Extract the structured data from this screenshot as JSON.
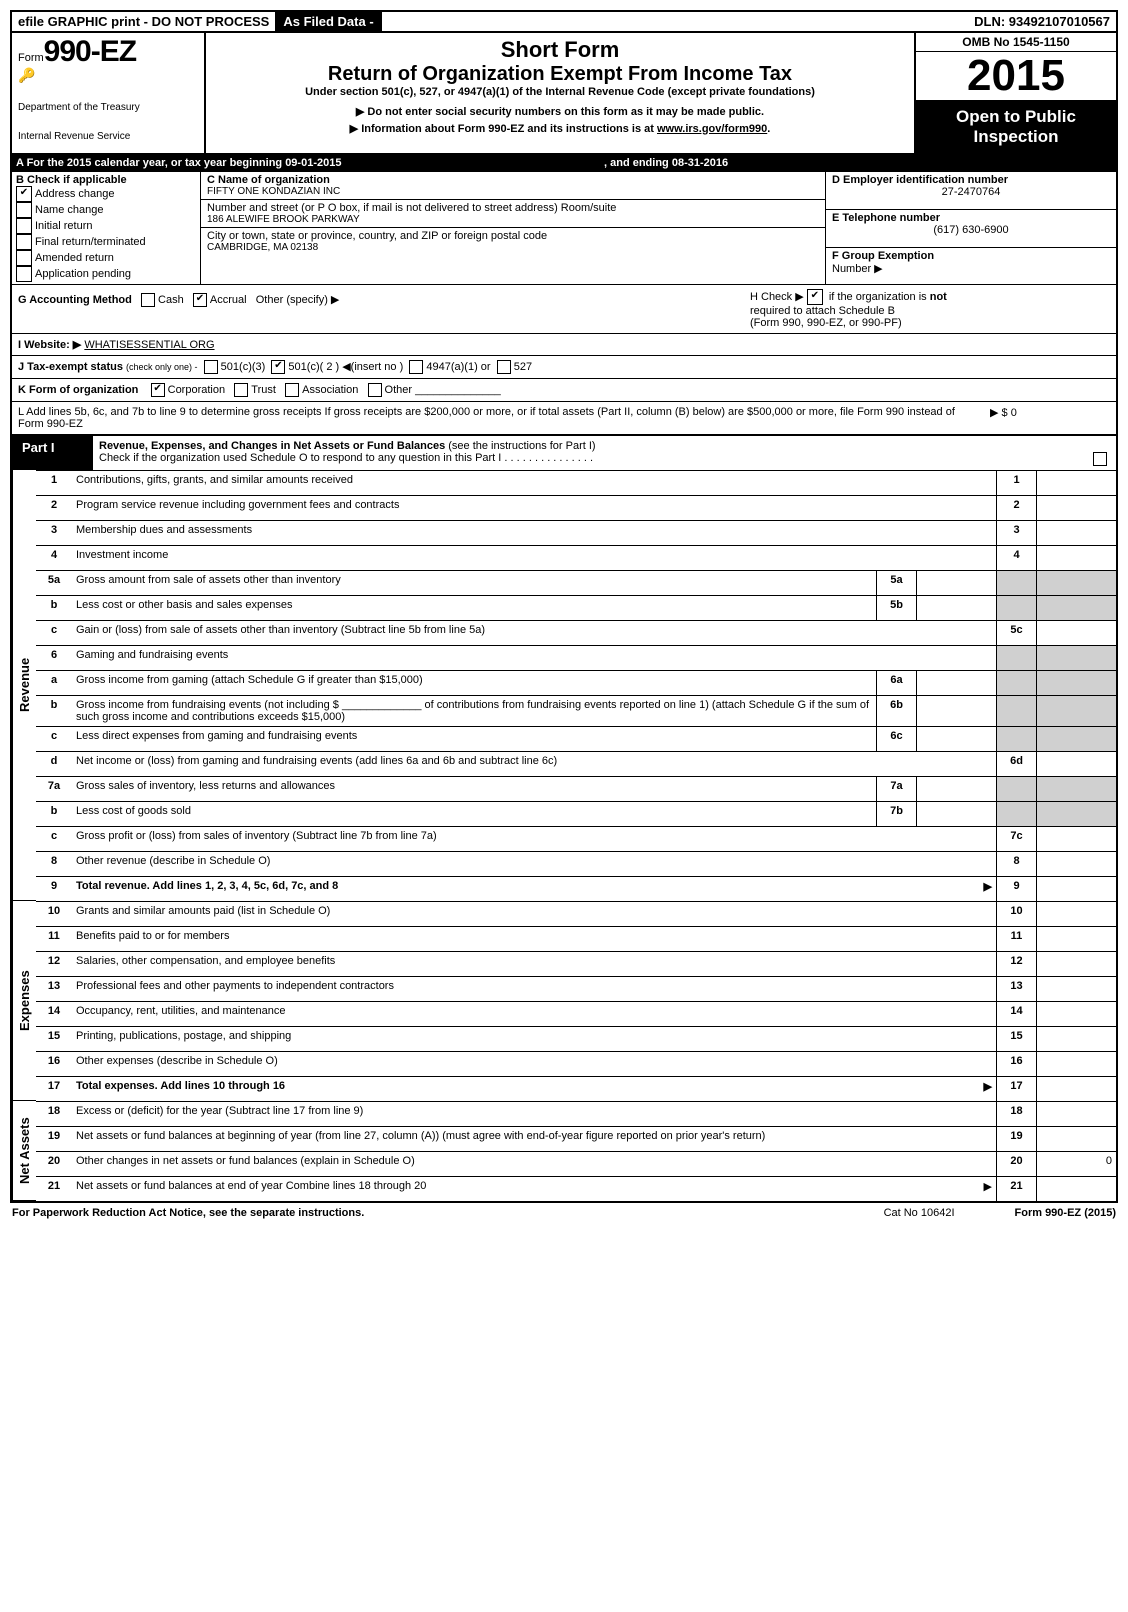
{
  "topbar": {
    "left": "efile GRAPHIC print - DO NOT PROCESS",
    "mid": "As Filed Data -",
    "right": "DLN: 93492107010567"
  },
  "header": {
    "form_prefix": "Form",
    "form_number": "990-EZ",
    "dept1": "Department of the Treasury",
    "dept2": "Internal Revenue Service",
    "short_form": "Short Form",
    "return_title": "Return of Organization Exempt From Income Tax",
    "under": "Under section 501(c), 527, or 4947(a)(1) of the Internal Revenue Code (except private foundations)",
    "bullet1": "▶ Do not enter social security numbers on this form as it may be made public.",
    "bullet2_pre": "▶ Information about Form 990-EZ and its instructions is at ",
    "bullet2_link": "www.irs.gov/form990",
    "bullet2_post": ".",
    "omb": "OMB No 1545-1150",
    "year": "2015",
    "open1": "Open to Public",
    "open2": "Inspection"
  },
  "rowA": {
    "label": "A  For the 2015 calendar year, or tax year beginning 09-01-2015",
    "mid": ", and ending 08-31-2016"
  },
  "B": {
    "label": "B  Check if applicable",
    "items": [
      {
        "label": "Address change",
        "checked": true
      },
      {
        "label": "Name change",
        "checked": false
      },
      {
        "label": "Initial return",
        "checked": false
      },
      {
        "label": "Final return/terminated",
        "checked": false
      },
      {
        "label": "Amended return",
        "checked": false
      },
      {
        "label": "Application pending",
        "checked": false
      }
    ]
  },
  "C": {
    "name_label": "C Name of organization",
    "name": "FIFTY ONE KONDAZIAN INC",
    "street_label": "Number and street (or P O box, if mail is not delivered to street address) Room/suite",
    "street": "186 ALEWIFE BROOK PARKWAY",
    "city_label": "City or town, state or province, country, and ZIP or foreign postal code",
    "city": "CAMBRIDGE, MA  02138"
  },
  "D": {
    "label": "D Employer identification number",
    "value": "27-2470764"
  },
  "E": {
    "label": "E Telephone number",
    "value": "(617) 630-6900"
  },
  "F": {
    "label": "F Group Exemption",
    "label2": "Number   ▶",
    "value": ""
  },
  "G": {
    "label": "G Accounting Method",
    "cash": "Cash",
    "accrual": "Accrual",
    "other": "Other (specify) ▶"
  },
  "H": {
    "line1_pre": "H   Check ▶ ",
    "line1_post": " if the organization is ",
    "not": "not",
    "line2": "required to attach Schedule B",
    "line3": "(Form 990, 990-EZ, or 990-PF)"
  },
  "I": {
    "label": "I Website: ▶",
    "value": "WHATISESSENTIAL ORG"
  },
  "J": {
    "label": "J Tax-exempt status",
    "hint": "(check only one) -",
    "o1": "501(c)(3)",
    "o2": "501(c)( 2 ) ◀(insert no )",
    "o3": "4947(a)(1) or",
    "o4": "527"
  },
  "K": {
    "label": "K Form of organization",
    "o1": "Corporation",
    "o2": "Trust",
    "o3": "Association",
    "o4": "Other"
  },
  "L": {
    "text": "L Add lines 5b, 6c, and 7b to line 9 to determine gross receipts  If gross receipts are $200,000 or more, or if total assets (Part II, column (B) below) are $500,000 or more, file Form 990 instead of Form 990-EZ",
    "amount": "▶ $ 0"
  },
  "part1": {
    "tab": "Part I",
    "title": "Revenue, Expenses, and Changes in Net Assets or Fund Balances",
    "title_suffix": " (see the instructions for Part I)",
    "check_line": "Check if the organization used Schedule O to respond to any question in this Part I   .   .   .   .   .   .   .   .   .   .   .   .   .   .   ."
  },
  "sections": {
    "revenue": "Revenue",
    "expenses": "Expenses",
    "netassets": "Net Assets"
  },
  "lines": [
    {
      "n": "1",
      "d": "Contributions, gifts, grants, and similar amounts received",
      "r": "1"
    },
    {
      "n": "2",
      "d": "Program service revenue including government fees and contracts",
      "r": "2"
    },
    {
      "n": "3",
      "d": "Membership dues and assessments",
      "r": "3"
    },
    {
      "n": "4",
      "d": "Investment income",
      "r": "4"
    },
    {
      "n": "5a",
      "d": "Gross amount from sale of assets other than inventory",
      "m": "5a"
    },
    {
      "n": "b",
      "d": "Less  cost or other basis and sales expenses",
      "m": "5b"
    },
    {
      "n": "c",
      "d": "Gain or (loss) from sale of assets other than inventory (Subtract line 5b from line 5a)",
      "r": "5c"
    },
    {
      "n": "6",
      "d": "Gaming and fundraising events"
    },
    {
      "n": "a",
      "d": "Gross income from gaming (attach Schedule G if greater than $15,000)",
      "m": "6a"
    },
    {
      "n": "b",
      "d": "Gross income from fundraising events (not including $ _____________ of contributions from fundraising events reported on line 1) (attach Schedule G if the sum of such gross income and contributions exceeds $15,000)",
      "m": "6b"
    },
    {
      "n": "c",
      "d": "Less  direct expenses from gaming and fundraising events",
      "m": "6c"
    },
    {
      "n": "d",
      "d": "Net income or (loss) from gaming and fundraising events (add lines 6a and 6b and subtract line 6c)",
      "r": "6d"
    },
    {
      "n": "7a",
      "d": "Gross sales of inventory, less returns and allowances",
      "m": "7a"
    },
    {
      "n": "b",
      "d": "Less  cost of goods sold",
      "m": "7b"
    },
    {
      "n": "c",
      "d": "Gross profit or (loss) from sales of inventory (Subtract line 7b from line 7a)",
      "r": "7c"
    },
    {
      "n": "8",
      "d": "Other revenue (describe in Schedule O)",
      "r": "8"
    },
    {
      "n": "9",
      "d": "Total revenue. Add lines 1, 2, 3, 4, 5c, 6d, 7c, and 8",
      "r": "9",
      "bold": true,
      "arrow": true
    },
    {
      "n": "10",
      "d": "Grants and similar amounts paid (list in Schedule O)",
      "r": "10"
    },
    {
      "n": "11",
      "d": "Benefits paid to or for members",
      "r": "11"
    },
    {
      "n": "12",
      "d": "Salaries, other compensation, and employee benefits",
      "r": "12"
    },
    {
      "n": "13",
      "d": "Professional fees and other payments to independent contractors",
      "r": "13"
    },
    {
      "n": "14",
      "d": "Occupancy, rent, utilities, and maintenance",
      "r": "14"
    },
    {
      "n": "15",
      "d": "Printing, publications, postage, and shipping",
      "r": "15"
    },
    {
      "n": "16",
      "d": "Other expenses (describe in Schedule O)",
      "r": "16"
    },
    {
      "n": "17",
      "d": "Total expenses. Add lines 10 through 16",
      "r": "17",
      "bold": true,
      "arrow": true
    },
    {
      "n": "18",
      "d": "Excess or (deficit) for the year (Subtract line 17 from line 9)",
      "r": "18"
    },
    {
      "n": "19",
      "d": "Net assets or fund balances at beginning of year (from line 27, column (A)) (must agree with end-of-year figure reported on prior year's return)",
      "r": "19"
    },
    {
      "n": "20",
      "d": "Other changes in net assets or fund balances (explain in Schedule O)",
      "r": "20",
      "v": "0"
    },
    {
      "n": "21",
      "d": "Net assets or fund balances at end of year  Combine lines 18 through 20",
      "r": "21",
      "arrow": true
    }
  ],
  "footer": {
    "left": "For Paperwork Reduction Act Notice, see the separate instructions.",
    "mid": "Cat No 10642I",
    "right": "Form 990-EZ (2015)"
  }
}
